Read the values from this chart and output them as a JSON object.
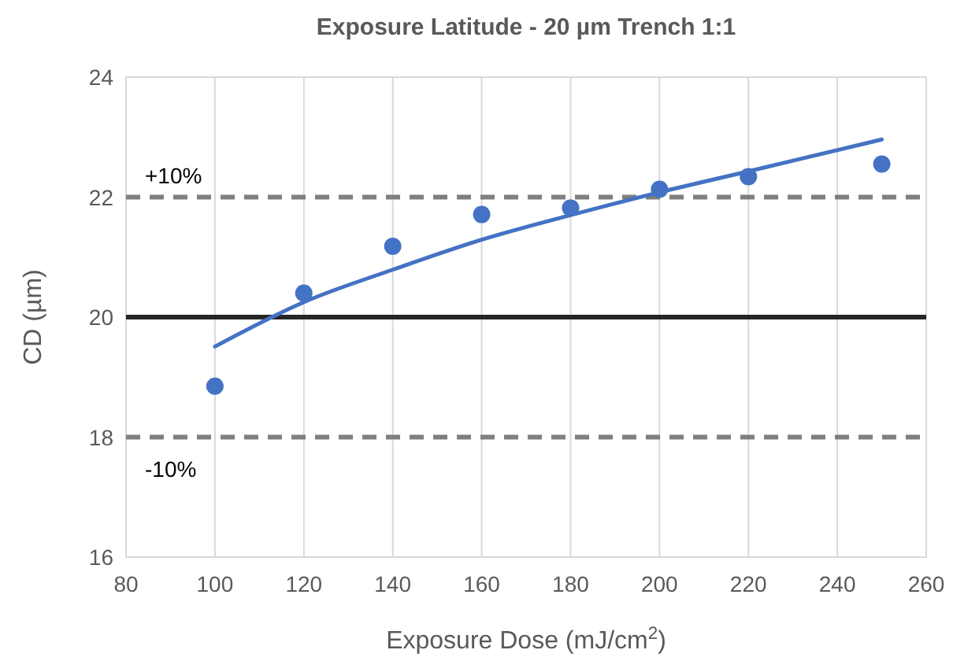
{
  "chart_data": {
    "type": "scatter",
    "title": "Exposure Latitude - 20 µm Trench 1:1",
    "xlabel": "Exposure Dose (mJ/cm$^{2}$)",
    "ylabel": "CD (µm)",
    "x": [
      100,
      120,
      140,
      160,
      180,
      200,
      220,
      250
    ],
    "series": [
      {
        "type": "scatter",
        "color": "#4472c4",
        "marker": "circle",
        "values": [
          18.85,
          20.4,
          21.18,
          21.71,
          21.82,
          22.13,
          22.34,
          22.55
        ]
      },
      {
        "type": "line",
        "color": "#4472c4",
        "marker": "none",
        "line_style": "solid",
        "x": [
          100,
          120,
          140,
          160,
          180,
          200,
          220,
          250
        ],
        "values": [
          19.51,
          20.25,
          20.79,
          21.29,
          21.7,
          22.08,
          22.43,
          22.96
        ]
      }
    ],
    "xlim": [
      80,
      260
    ],
    "xticks": [
      80,
      100,
      120,
      140,
      160,
      180,
      200,
      220,
      240,
      260
    ],
    "ylim": [
      16,
      24
    ],
    "yticks": [
      16,
      18,
      20,
      22,
      24
    ],
    "grid": true,
    "ref_lines": [
      {
        "axis": "y",
        "value": 22,
        "color": "#7f7f7f",
        "line_style": "dashed"
      },
      {
        "axis": "y",
        "value": 18,
        "color": "#7f7f7f",
        "line_style": "dashed"
      },
      {
        "axis": "y",
        "value": 20,
        "color": "#262626",
        "line_style": "solid"
      }
    ],
    "annotations": [
      "+10%",
      "-10%"
    ]
  }
}
